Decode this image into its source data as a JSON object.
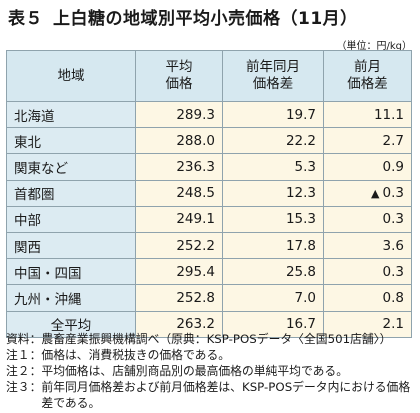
{
  "title": {
    "label": "表５",
    "text": "上白糖の地域別平均小売価格（11月）"
  },
  "unit": "（単位：円/kg）",
  "table": {
    "headers": {
      "region": "地域",
      "avg_1": "平均",
      "avg_2": "価格",
      "yoy_1": "前年同月",
      "yoy_2": "価格差",
      "mom_1": "前月",
      "mom_2": "価格差"
    },
    "rows": [
      {
        "region": "北海道",
        "avg": "289.3",
        "yoy": "19.7",
        "mom_mark": "",
        "mom": "11.1"
      },
      {
        "region": "東北",
        "avg": "288.0",
        "yoy": "22.2",
        "mom_mark": "",
        "mom": "2.7"
      },
      {
        "region": "関東など",
        "avg": "236.3",
        "yoy": "5.3",
        "mom_mark": "",
        "mom": "0.9"
      },
      {
        "region": "首都圏",
        "avg": "248.5",
        "yoy": "12.3",
        "mom_mark": "▲",
        "mom": "0.3"
      },
      {
        "region": "中部",
        "avg": "249.1",
        "yoy": "15.3",
        "mom_mark": "",
        "mom": "0.3"
      },
      {
        "region": "関西",
        "avg": "252.2",
        "yoy": "17.8",
        "mom_mark": "",
        "mom": "3.6"
      },
      {
        "region": "中国・四国",
        "avg": "295.4",
        "yoy": "25.8",
        "mom_mark": "",
        "mom": "0.3"
      },
      {
        "region": "九州・沖縄",
        "avg": "252.8",
        "yoy": "7.0",
        "mom_mark": "",
        "mom": "0.8"
      },
      {
        "region": "全平均",
        "avg": "263.2",
        "yoy": "16.7",
        "mom_mark": "",
        "mom": "2.1"
      }
    ]
  },
  "notes": [
    {
      "head": "資料：",
      "text": "農畜産業振興機構調べ（原典：KSP-POSデータ〈全国501店舗〉）"
    },
    {
      "head": "注１：",
      "text": "価格は、消費税抜きの価格である。"
    },
    {
      "head": "注２：",
      "text": "平均価格は、店舗別商品別の最高価格の単純平均である。"
    },
    {
      "head": "注３：",
      "text": "前年同月価格差および前月価格差は、KSP-POSデータ内における価格差である。"
    }
  ],
  "colors": {
    "header_bg": "#d6e8f0",
    "region_bg": "#dcebf2",
    "value_bg": "#fdf7e4",
    "border": "#8fa3ad"
  }
}
